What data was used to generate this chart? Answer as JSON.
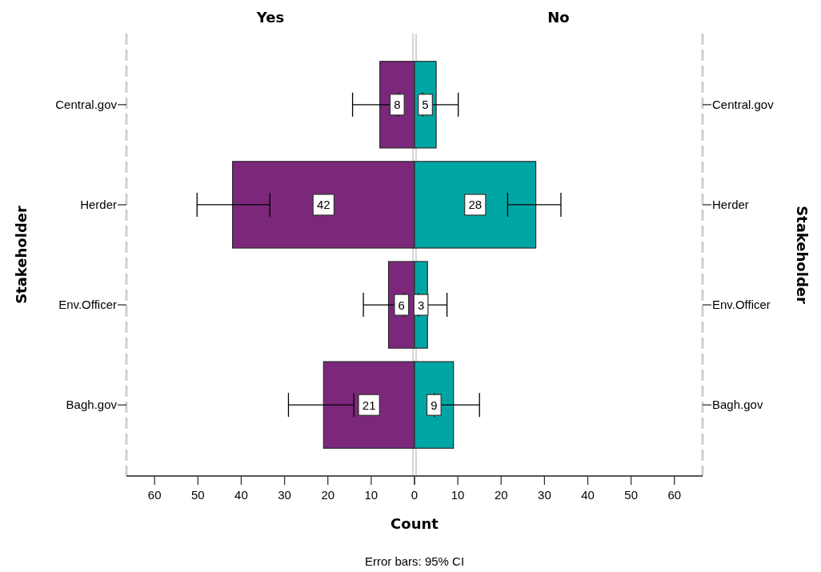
{
  "chart_data": [
    {
      "type": "bar",
      "orientation": "horizontal",
      "title": "Yes",
      "xlabel": "Count",
      "ylabel": "Stakeholder",
      "categories": [
        "Central.gov",
        "Herder",
        "Env.Officer",
        "Bagh.gov"
      ],
      "values": [
        8,
        42,
        6,
        21
      ],
      "color": "#7b287b",
      "errors": [
        [
          3.7,
          14.3
        ],
        [
          33.4,
          50.2
        ],
        [
          2.5,
          11.8
        ],
        [
          14,
          29.1
        ]
      ],
      "xlim": [
        66.5,
        0
      ],
      "xticks": [
        60,
        50,
        40,
        30,
        20,
        10,
        0
      ],
      "data_labels": true,
      "annotations": [
        "Error bars: 95% CI"
      ]
    },
    {
      "type": "bar",
      "orientation": "horizontal",
      "title": "No",
      "ylabel": "Stakeholder",
      "categories": [
        "Central.gov",
        "Herder",
        "Env.Officer",
        "Bagh.gov"
      ],
      "values": [
        5,
        28,
        3,
        9
      ],
      "color": "#00a6a4",
      "errors": [
        [
          1.9,
          10.1
        ],
        [
          21.5,
          33.8
        ],
        [
          0.9,
          7.5
        ],
        [
          4.6,
          15
        ]
      ],
      "xlim": [
        0,
        66.5
      ],
      "xticks": [
        {
          "value": 0,
          "label": null
        },
        10,
        20,
        30,
        40,
        50,
        60
      ],
      "data_labels": true
    }
  ]
}
